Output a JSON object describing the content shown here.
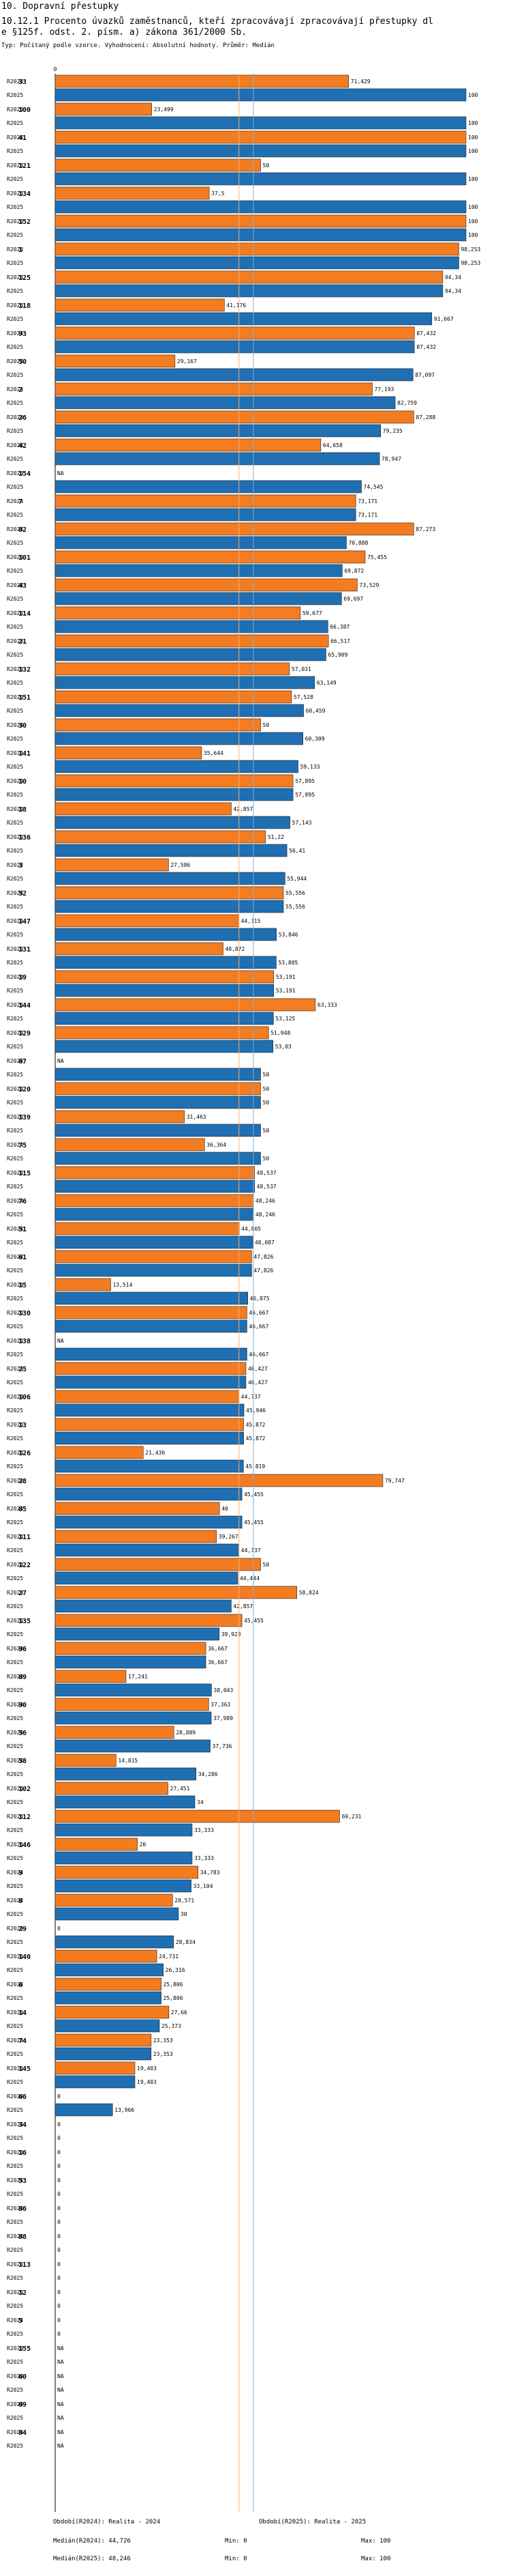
{
  "header": {
    "line1": "10. Dopravní přestupky",
    "line2": "10.12.1 Procento úvazků zaměstnanců, kteří zpracovávají zpracovávají přestupky dl",
    "line3": "e §125f. odst. 2. písm. a) zákona 361/2000 Sb.",
    "subtitle": "Typ: Počítaný podle vzorce. Vyhodnocení: Absolutní hodnoty. Průměr: Medián"
  },
  "colors": {
    "r2024": "#F47C20",
    "r2025": "#1F6FB2",
    "median2024": "#F2B27A",
    "median2025": "#7FB0DA"
  },
  "chart_data": {
    "type": "bar",
    "orientation": "horizontal",
    "xlim": [
      0,
      100
    ],
    "zero_label": "0",
    "series_labels": [
      "R2024",
      "R2025"
    ],
    "na_label": "NA",
    "medians": {
      "r2024": 44.726,
      "r2025": 48.246
    },
    "rows": [
      {
        "id": "33",
        "v": [
          71.429,
          100
        ]
      },
      {
        "id": "100",
        "v": [
          23.499,
          100
        ]
      },
      {
        "id": "41",
        "v": [
          100,
          100
        ]
      },
      {
        "id": "121",
        "v": [
          50,
          100
        ]
      },
      {
        "id": "134",
        "v": [
          37.5,
          100
        ]
      },
      {
        "id": "152",
        "v": [
          100,
          100
        ]
      },
      {
        "id": "1",
        "v": [
          98.253,
          98.253
        ]
      },
      {
        "id": "125",
        "v": [
          94.34,
          94.34
        ]
      },
      {
        "id": "118",
        "v": [
          41.176,
          91.667
        ]
      },
      {
        "id": "93",
        "v": [
          87.432,
          87.432
        ]
      },
      {
        "id": "50",
        "v": [
          29.167,
          87.097
        ]
      },
      {
        "id": "2",
        "v": [
          77.193,
          82.759
        ]
      },
      {
        "id": "26",
        "v": [
          87.288,
          79.235
        ]
      },
      {
        "id": "42",
        "v": [
          64.658,
          78.947
        ]
      },
      {
        "id": "154",
        "v": [
          null,
          74.545
        ]
      },
      {
        "id": "7",
        "v": [
          73.171,
          73.171
        ]
      },
      {
        "id": "82",
        "v": [
          87.273,
          70.888
        ]
      },
      {
        "id": "101",
        "v": [
          75.455,
          69.872
        ]
      },
      {
        "id": "43",
        "v": [
          73.529,
          69.697
        ]
      },
      {
        "id": "114",
        "v": [
          59.677,
          66.387
        ]
      },
      {
        "id": "21",
        "v": [
          66.517,
          65.909
        ]
      },
      {
        "id": "132",
        "v": [
          57.031,
          63.149
        ]
      },
      {
        "id": "151",
        "v": [
          57.528,
          60.459
        ]
      },
      {
        "id": "30",
        "v": [
          50,
          60.309
        ]
      },
      {
        "id": "141",
        "v": [
          35.644,
          59.133
        ]
      },
      {
        "id": "10",
        "v": [
          57.895,
          57.895
        ]
      },
      {
        "id": "18",
        "v": [
          42.857,
          57.143
        ]
      },
      {
        "id": "136",
        "v": [
          51.22,
          56.41
        ]
      },
      {
        "id": "3",
        "v": [
          27.586,
          55.944
        ]
      },
      {
        "id": "52",
        "v": [
          55.556,
          55.556
        ]
      },
      {
        "id": "147",
        "v": [
          44.715,
          53.846
        ]
      },
      {
        "id": "131",
        "v": [
          40.872,
          53.805
        ]
      },
      {
        "id": "19",
        "v": [
          53.191,
          53.191
        ]
      },
      {
        "id": "144",
        "v": [
          63.333,
          53.125
        ]
      },
      {
        "id": "129",
        "v": [
          51.948,
          53.03
        ]
      },
      {
        "id": "67",
        "v": [
          null,
          50
        ]
      },
      {
        "id": "120",
        "v": [
          50,
          50
        ]
      },
      {
        "id": "139",
        "v": [
          31.463,
          50
        ]
      },
      {
        "id": "75",
        "v": [
          36.364,
          50
        ]
      },
      {
        "id": "115",
        "v": [
          48.537,
          48.537
        ]
      },
      {
        "id": "76",
        "v": [
          48.246,
          48.246
        ]
      },
      {
        "id": "51",
        "v": [
          44.805,
          48.087
        ]
      },
      {
        "id": "61",
        "v": [
          47.826,
          47.826
        ]
      },
      {
        "id": "15",
        "v": [
          13.514,
          46.875
        ]
      },
      {
        "id": "130",
        "v": [
          46.667,
          46.667
        ]
      },
      {
        "id": "138",
        "v": [
          null,
          46.667
        ]
      },
      {
        "id": "25",
        "v": [
          46.427,
          46.427
        ]
      },
      {
        "id": "106",
        "v": [
          44.737,
          45.946
        ]
      },
      {
        "id": "13",
        "v": [
          45.872,
          45.872
        ]
      },
      {
        "id": "126",
        "v": [
          21.436,
          45.819
        ]
      },
      {
        "id": "28",
        "v": [
          79.747,
          45.455
        ]
      },
      {
        "id": "85",
        "v": [
          40,
          45.455
        ]
      },
      {
        "id": "111",
        "v": [
          39.267,
          44.737
        ]
      },
      {
        "id": "122",
        "v": [
          50,
          44.444
        ]
      },
      {
        "id": "27",
        "v": [
          58.824,
          42.857
        ]
      },
      {
        "id": "135",
        "v": [
          45.455,
          39.923
        ]
      },
      {
        "id": "96",
        "v": [
          36.667,
          36.667
        ]
      },
      {
        "id": "89",
        "v": [
          17.241,
          38.043
        ]
      },
      {
        "id": "90",
        "v": [
          37.363,
          37.989
        ]
      },
      {
        "id": "56",
        "v": [
          28.889,
          37.736
        ]
      },
      {
        "id": "58",
        "v": [
          14.815,
          34.286
        ]
      },
      {
        "id": "102",
        "v": [
          27.451,
          34
        ]
      },
      {
        "id": "112",
        "v": [
          69.231,
          33.333
        ]
      },
      {
        "id": "146",
        "v": [
          20,
          33.333
        ]
      },
      {
        "id": "9",
        "v": [
          34.783,
          33.104
        ]
      },
      {
        "id": "8",
        "v": [
          28.571,
          30
        ]
      },
      {
        "id": "29",
        "v": [
          0,
          28.834
        ]
      },
      {
        "id": "140",
        "v": [
          24.731,
          26.316
        ]
      },
      {
        "id": "6",
        "v": [
          25.806,
          25.806
        ]
      },
      {
        "id": "14",
        "v": [
          27.66,
          25.373
        ]
      },
      {
        "id": "74",
        "v": [
          23.353,
          23.353
        ]
      },
      {
        "id": "145",
        "v": [
          19.403,
          19.403
        ]
      },
      {
        "id": "66",
        "v": [
          0,
          13.966
        ]
      },
      {
        "id": "34",
        "v": [
          0,
          0
        ]
      },
      {
        "id": "16",
        "v": [
          0,
          0
        ]
      },
      {
        "id": "53",
        "v": [
          0,
          0
        ]
      },
      {
        "id": "86",
        "v": [
          0,
          0
        ]
      },
      {
        "id": "88",
        "v": [
          0,
          0
        ]
      },
      {
        "id": "113",
        "v": [
          0,
          0
        ]
      },
      {
        "id": "12",
        "v": [
          0,
          0
        ]
      },
      {
        "id": "5",
        "v": [
          0,
          0
        ]
      },
      {
        "id": "155",
        "v": [
          null,
          null
        ]
      },
      {
        "id": "60",
        "v": [
          null,
          null
        ]
      },
      {
        "id": "69",
        "v": [
          null,
          null
        ]
      },
      {
        "id": "84",
        "v": [
          null,
          null
        ]
      }
    ]
  },
  "footer": {
    "left": [
      "Období(R2024): Realita - 2024",
      "Medián(R2024): 44,726",
      "Medián(R2025): 48,246"
    ],
    "mid": [
      "Min: 0",
      "Min: 0"
    ],
    "right": [
      "Období(R2025): Realita - 2025",
      "Max: 100",
      "Max: 100"
    ]
  }
}
